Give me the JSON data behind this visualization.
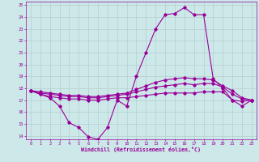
{
  "xlabel": "Windchill (Refroidissement éolien,°C)",
  "x": [
    0,
    1,
    2,
    3,
    4,
    5,
    6,
    7,
    8,
    9,
    10,
    11,
    12,
    13,
    14,
    15,
    16,
    17,
    18,
    19,
    20,
    21,
    22,
    23
  ],
  "line1": [
    17.8,
    17.5,
    17.2,
    16.5,
    15.1,
    14.7,
    13.9,
    13.7,
    14.7,
    17.0,
    16.5,
    19.0,
    21.0,
    23.0,
    24.2,
    24.3,
    24.8,
    24.2,
    24.2,
    18.8,
    18.0,
    17.0,
    16.5,
    17.0
  ],
  "line2": [
    17.8,
    17.5,
    17.3,
    17.2,
    17.1,
    17.1,
    17.0,
    17.0,
    17.1,
    17.2,
    17.2,
    17.3,
    17.4,
    17.5,
    17.6,
    17.6,
    17.6,
    17.6,
    17.7,
    17.7,
    17.7,
    17.0,
    16.9,
    17.0
  ],
  "line3": [
    17.8,
    17.6,
    17.5,
    17.4,
    17.3,
    17.3,
    17.2,
    17.2,
    17.3,
    17.4,
    17.5,
    17.7,
    17.9,
    18.1,
    18.2,
    18.3,
    18.4,
    18.3,
    18.4,
    18.4,
    18.1,
    17.5,
    17.1,
    17.0
  ],
  "line4": [
    17.8,
    17.7,
    17.6,
    17.5,
    17.4,
    17.4,
    17.3,
    17.3,
    17.4,
    17.5,
    17.6,
    17.9,
    18.2,
    18.5,
    18.7,
    18.8,
    18.9,
    18.8,
    18.8,
    18.7,
    18.2,
    17.8,
    17.2,
    17.0
  ],
  "color": "#990099",
  "bg_color": "#cce8e8",
  "grid_color": "#b0c8c8",
  "ylim": [
    14,
    25
  ],
  "xlim": [
    0,
    23
  ],
  "yticks": [
    14,
    15,
    16,
    17,
    18,
    19,
    20,
    21,
    22,
    23,
    24,
    25
  ],
  "xticks": [
    0,
    1,
    2,
    3,
    4,
    5,
    6,
    7,
    8,
    9,
    10,
    11,
    12,
    13,
    14,
    15,
    16,
    17,
    18,
    19,
    20,
    21,
    22,
    23
  ]
}
